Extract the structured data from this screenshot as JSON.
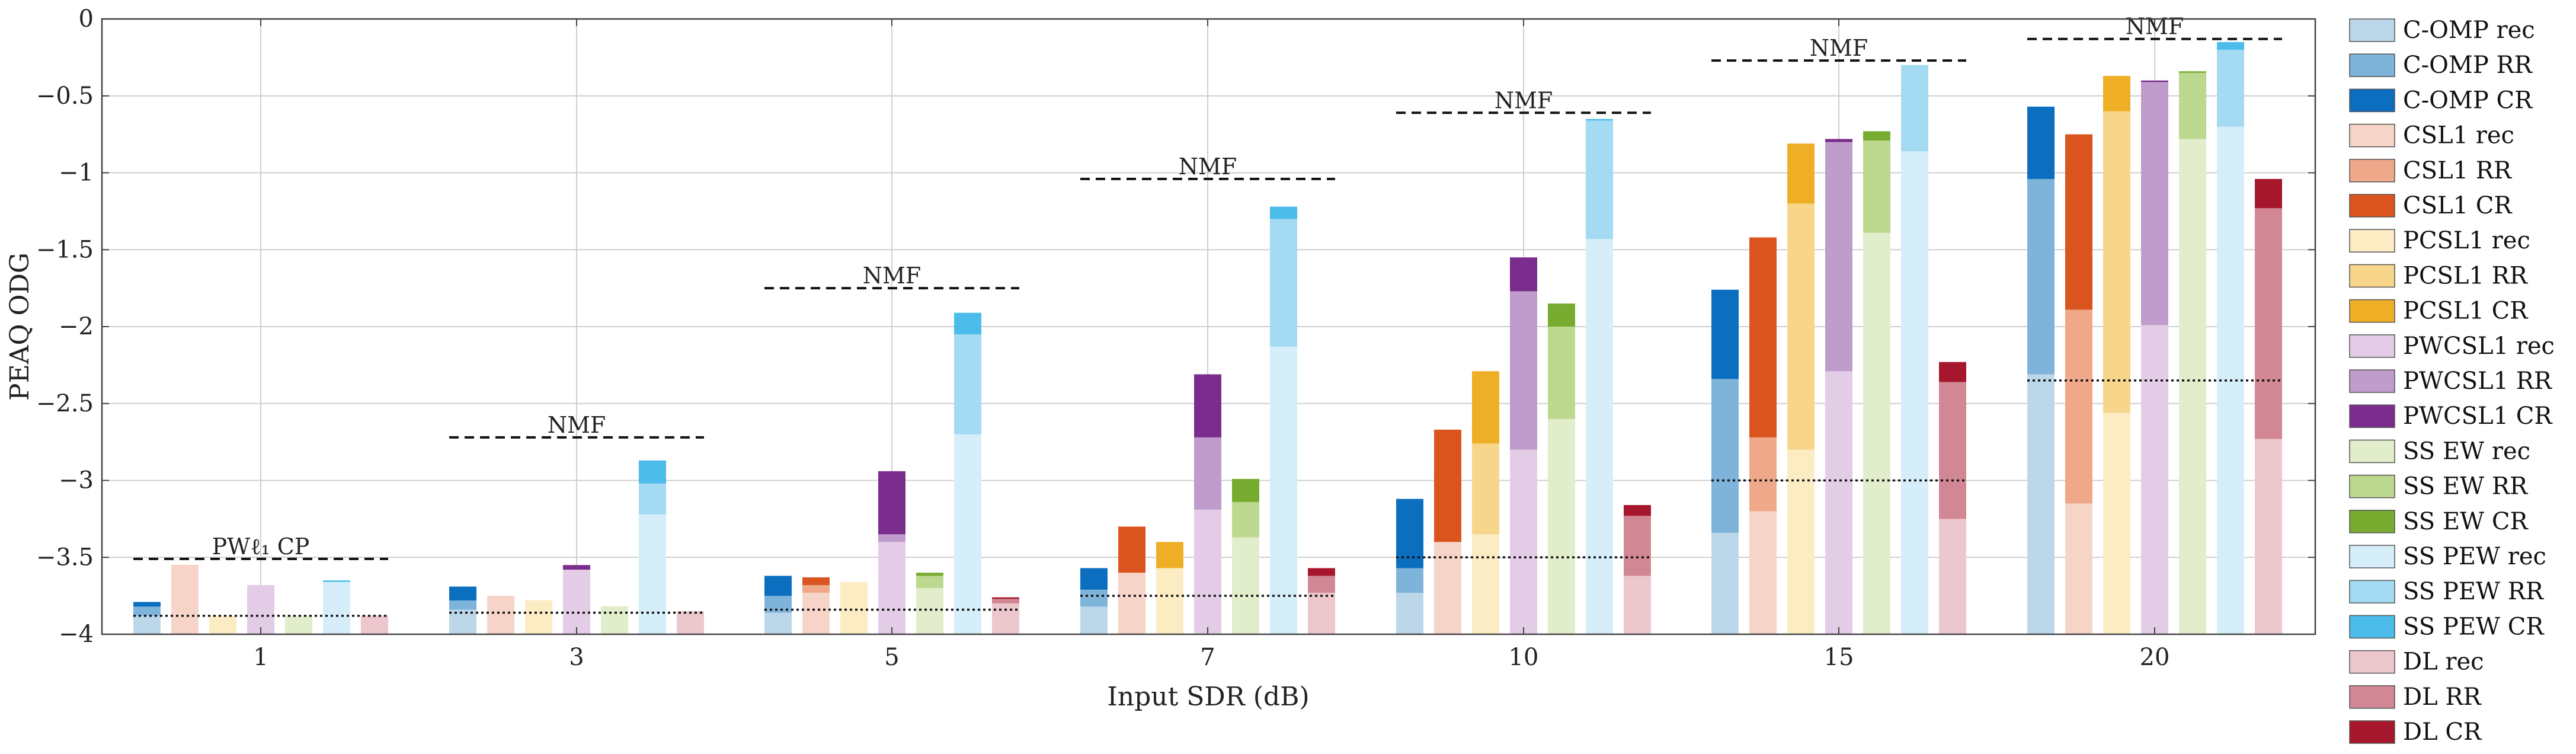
{
  "chart_data": {
    "type": "bar",
    "subtype": "grouped-stacked",
    "xlabel": "Input SDR (dB)",
    "ylabel": "PEAQ ODG",
    "ylim": [
      -4,
      0
    ],
    "yticks": [
      0,
      -0.5,
      -1,
      -1.5,
      -2,
      -2.5,
      -3,
      -3.5,
      -4
    ],
    "ytick_labels": [
      "0",
      "−0.5",
      "−1",
      "−1.5",
      "−2",
      "−2.5",
      "−3",
      "−3.5",
      "−4"
    ],
    "categories": [
      "1",
      "3",
      "5",
      "7",
      "10",
      "15",
      "20"
    ],
    "grid": true,
    "legend_position": "outside-right",
    "methods": [
      {
        "name": "C-OMP",
        "colors": [
          "#bcd7ea",
          "#7eb3da",
          "#0b6ebf"
        ],
        "rec": [
          -3.88,
          -3.84,
          -3.86,
          -3.82,
          -3.73,
          -3.34,
          -2.31
        ],
        "rr": [
          -3.82,
          -3.78,
          -3.75,
          -3.71,
          -3.57,
          -2.34,
          -1.04
        ],
        "cr": [
          -3.79,
          -3.69,
          -3.62,
          -3.57,
          -3.12,
          -1.76,
          -0.57
        ]
      },
      {
        "name": "CSL1",
        "colors": [
          "#f6d5c8",
          "#f0a88a",
          "#d9541e"
        ],
        "rec": [
          -3.55,
          -3.75,
          -3.73,
          -3.6,
          -3.4,
          -3.2,
          -3.15
        ],
        "rr": [
          -3.55,
          -3.8,
          -3.68,
          -3.6,
          -3.4,
          -2.72,
          -1.89
        ],
        "cr": [
          -3.55,
          -3.8,
          -3.63,
          -3.3,
          -2.67,
          -1.42,
          -0.75
        ]
      },
      {
        "name": "PCSL1",
        "colors": [
          "#fbecc4",
          "#f7d68b",
          "#eeaf27"
        ],
        "rec": [
          -3.88,
          -3.78,
          -3.66,
          -3.57,
          -3.35,
          -2.8,
          -2.56
        ],
        "rr": [
          -3.88,
          -3.78,
          -3.73,
          -3.57,
          -2.76,
          -1.2,
          -0.6
        ],
        "cr": [
          -3.88,
          -3.78,
          -3.67,
          -3.4,
          -2.29,
          -0.81,
          -0.37
        ]
      },
      {
        "name": "PWCSL1",
        "colors": [
          "#e3cde6",
          "#bf9ccc",
          "#7b2d8e"
        ],
        "rec": [
          -3.68,
          -3.58,
          -3.4,
          -3.19,
          -2.8,
          -2.29,
          -1.99
        ],
        "rr": [
          -3.8,
          -3.76,
          -3.35,
          -2.72,
          -1.77,
          -0.8,
          -0.41
        ],
        "cr": [
          -3.8,
          -3.55,
          -2.94,
          -2.31,
          -1.55,
          -0.78,
          -0.4
        ]
      },
      {
        "name": "SS EW",
        "colors": [
          "#e2edcc",
          "#bdd88f",
          "#77ac31"
        ],
        "rec": [
          -3.88,
          -3.82,
          -3.7,
          -3.37,
          -2.6,
          -1.39,
          -0.78
        ],
        "rr": [
          -3.88,
          -3.82,
          -3.62,
          -3.14,
          -2.0,
          -0.79,
          -0.35
        ],
        "cr": [
          -3.88,
          -3.82,
          -3.6,
          -2.99,
          -1.85,
          -0.73,
          -0.34
        ]
      },
      {
        "name": "SS PEW",
        "colors": [
          "#d5eef9",
          "#a4daf2",
          "#4cbceb"
        ],
        "rec": [
          -3.66,
          -3.22,
          -2.7,
          -2.13,
          -1.43,
          -0.86,
          -0.7
        ],
        "rr": [
          -3.66,
          -3.02,
          -2.05,
          -1.3,
          -0.66,
          -0.3,
          -0.2
        ],
        "cr": [
          -3.65,
          -2.87,
          -1.91,
          -1.22,
          -0.65,
          -0.3,
          -0.15
        ]
      },
      {
        "name": "DL",
        "colors": [
          "#ecc7cd",
          "#d18894",
          "#a6172e"
        ],
        "rec": [
          -3.88,
          -3.85,
          -3.8,
          -3.73,
          -3.62,
          -3.25,
          -2.73
        ],
        "rr": [
          -3.88,
          -3.85,
          -3.77,
          -3.62,
          -3.23,
          -2.36,
          -1.23
        ],
        "cr": [
          -3.88,
          -3.85,
          -3.76,
          -3.57,
          -3.16,
          -2.23,
          -1.04
        ]
      }
    ],
    "reference_lines": [
      {
        "label": "PWℓ₁ CP",
        "style": "dashed",
        "values": [
          -3.51,
          null,
          null,
          null,
          null,
          null,
          null
        ]
      },
      {
        "label": "NMF",
        "style": "dashed",
        "values": [
          null,
          -2.72,
          -1.75,
          -1.04,
          -0.61,
          -0.27,
          -0.13
        ]
      },
      {
        "label": "",
        "style": "dotted",
        "values": [
          -3.88,
          -3.86,
          -3.84,
          -3.75,
          -3.5,
          -3.0,
          -2.35
        ]
      }
    ],
    "legend": [
      {
        "label": "C-OMP rec",
        "color": "#bcd7ea"
      },
      {
        "label": "C-OMP RR",
        "color": "#7eb3da"
      },
      {
        "label": "C-OMP CR",
        "color": "#0b6ebf"
      },
      {
        "label": "CSL1 rec",
        "color": "#f6d5c8"
      },
      {
        "label": "CSL1 RR",
        "color": "#f0a88a"
      },
      {
        "label": "CSL1 CR",
        "color": "#d9541e"
      },
      {
        "label": "PCSL1 rec",
        "color": "#fbecc4"
      },
      {
        "label": "PCSL1 RR",
        "color": "#f7d68b"
      },
      {
        "label": "PCSL1 CR",
        "color": "#eeaf27"
      },
      {
        "label": "PWCSL1 rec",
        "color": "#e3cde6"
      },
      {
        "label": "PWCSL1 RR",
        "color": "#bf9ccc"
      },
      {
        "label": "PWCSL1 CR",
        "color": "#7b2d8e"
      },
      {
        "label": "SS EW rec",
        "color": "#e2edcc"
      },
      {
        "label": "SS EW RR",
        "color": "#bdd88f"
      },
      {
        "label": "SS EW CR",
        "color": "#77ac31"
      },
      {
        "label": "SS PEW rec",
        "color": "#d5eef9"
      },
      {
        "label": "SS PEW RR",
        "color": "#a4daf2"
      },
      {
        "label": "SS PEW CR",
        "color": "#4cbceb"
      },
      {
        "label": "DL rec",
        "color": "#ecc7cd"
      },
      {
        "label": "DL RR",
        "color": "#d18894"
      },
      {
        "label": "DL CR",
        "color": "#a6172e"
      }
    ]
  }
}
